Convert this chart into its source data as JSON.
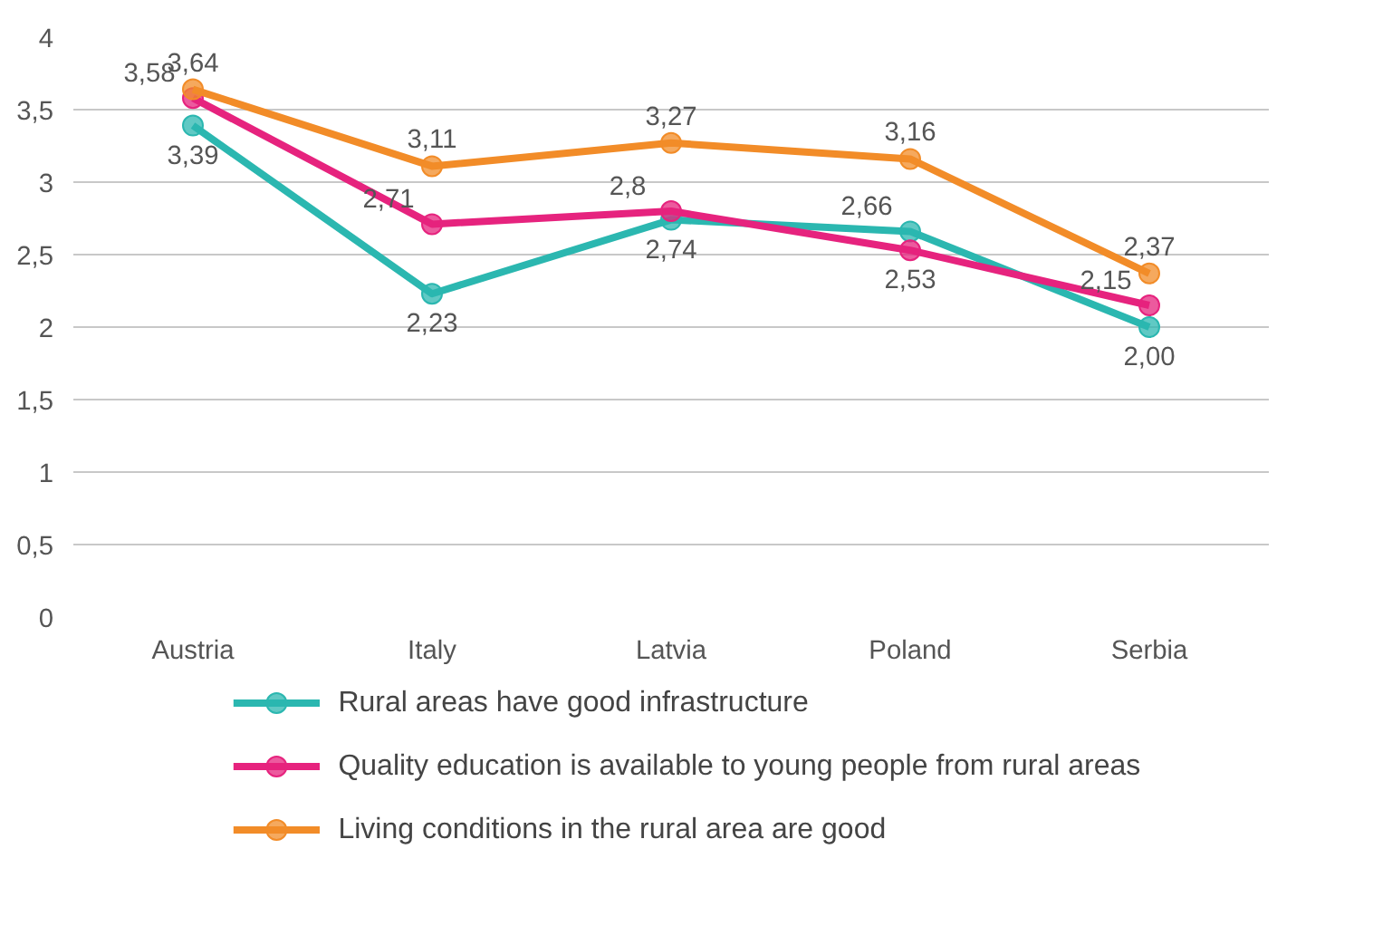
{
  "chart_data": {
    "type": "line",
    "categories": [
      "Austria",
      "Italy",
      "Latvia",
      "Poland",
      "Serbia"
    ],
    "ylim": [
      0,
      4
    ],
    "yticks": [
      0,
      {
        "value": 0.5,
        "label": "0,5"
      },
      1,
      {
        "value": 1.5,
        "label": "1,5"
      },
      2,
      {
        "value": 2.5,
        "label": "2,5"
      },
      3,
      {
        "value": 3.5,
        "label": "3,5"
      },
      4
    ],
    "grid": "y",
    "legend": "bottom",
    "marker": "circle",
    "line_style": "solid",
    "series": [
      {
        "name": "Rural areas have good infrastructure",
        "color": "#2bb7b0",
        "values": [
          3.39,
          2.23,
          2.74,
          2.66,
          2.0
        ],
        "value_labels": [
          "3,39",
          "2,23",
          "2,74",
          "2,66",
          "2,00"
        ]
      },
      {
        "name": "Quality education is available to young people from rural areas",
        "color": "#e6237e",
        "values": [
          3.58,
          2.71,
          2.8,
          2.53,
          2.15
        ],
        "value_labels": [
          "3,58",
          "2,71",
          "2,8",
          "2,53",
          "2,15"
        ]
      },
      {
        "name": "Living conditions in the rural area are good",
        "color": "#f28c28",
        "values": [
          3.64,
          3.11,
          3.27,
          3.16,
          2.37
        ],
        "value_labels": [
          "3,64",
          "3,11",
          "3,27",
          "3,16",
          "2,37"
        ]
      }
    ]
  }
}
